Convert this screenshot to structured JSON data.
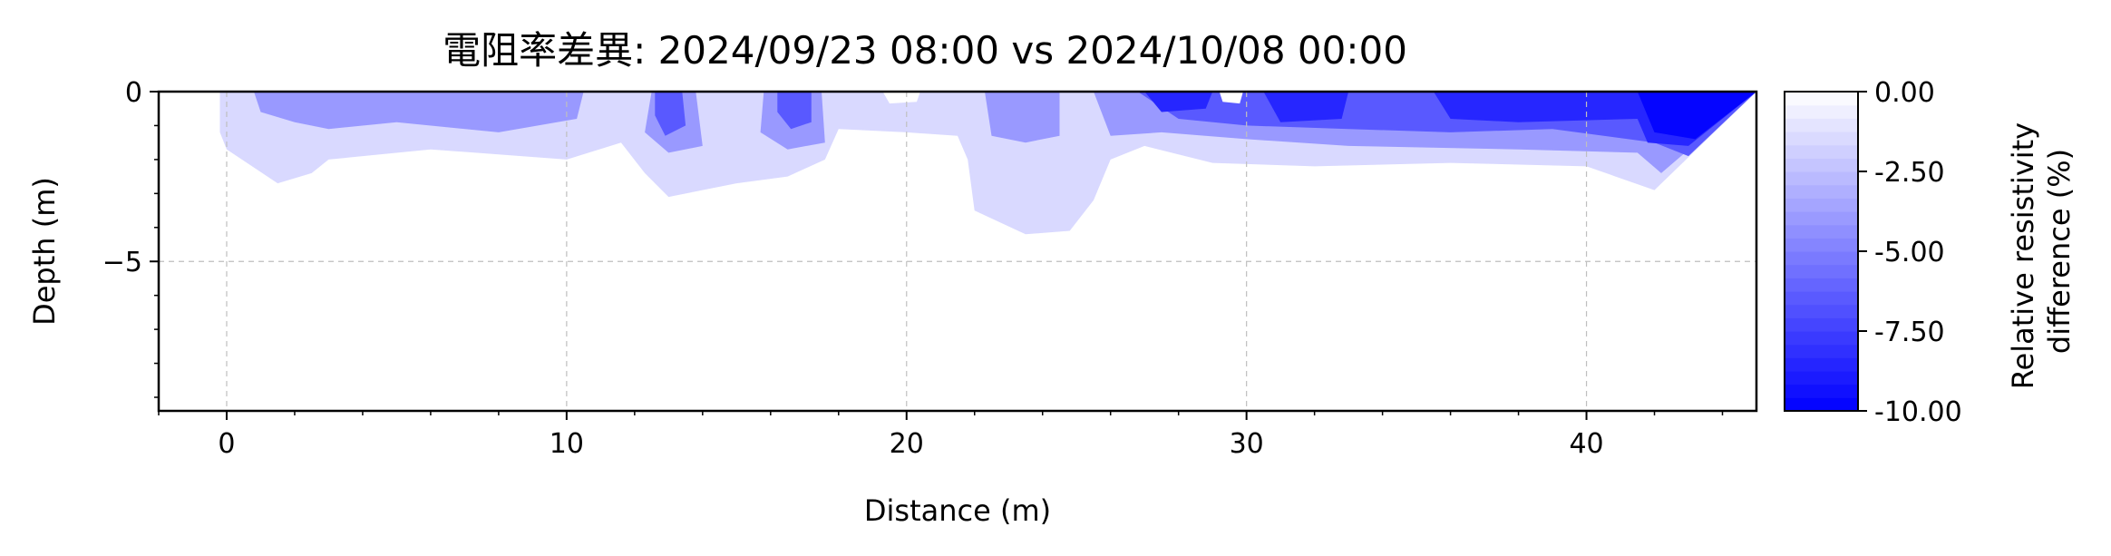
{
  "chart_data": {
    "type": "heatmap",
    "title": "電阻率差異: 2024/09/23 08:00 vs 2024/10/08 00:00",
    "xlabel": "Distance (m)",
    "ylabel": "Depth (m)",
    "xlim": [
      -2.0,
      45.0
    ],
    "ylim": [
      -9.4,
      0
    ],
    "xticks": [
      0,
      10,
      20,
      30,
      40
    ],
    "xtick_labels": [
      "0",
      "10",
      "20",
      "30",
      "40"
    ],
    "yticks": [
      0,
      -5
    ],
    "ytick_labels": [
      "0",
      "−5"
    ],
    "grid": true,
    "colorbar": {
      "label_lines": [
        "Relative resistivity",
        "difference (%)"
      ],
      "range": [
        -10.0,
        0.0
      ],
      "ticks": [
        0.0,
        -2.5,
        -5.0,
        -7.5,
        -10.0
      ],
      "tick_labels": [
        "0.00",
        "-2.50",
        "-5.00",
        "-7.50",
        "-10.00"
      ],
      "color_low": "#0000ff",
      "color_high": "#ffffff",
      "levels": 24
    },
    "regions": [
      {
        "level": -1.5,
        "points": [
          [
            0.0,
            0.0
          ],
          [
            45.0,
            0.0
          ],
          [
            42.0,
            -2.9
          ],
          [
            40.0,
            -2.2
          ],
          [
            36.0,
            -2.1
          ],
          [
            32.0,
            -2.2
          ],
          [
            29.0,
            -2.1
          ],
          [
            27.0,
            -1.6
          ],
          [
            26.0,
            -2.0
          ],
          [
            25.5,
            -3.2
          ],
          [
            24.8,
            -4.1
          ],
          [
            23.5,
            -4.2
          ],
          [
            22.0,
            -3.5
          ],
          [
            21.8,
            -2.0
          ],
          [
            21.5,
            -1.3
          ],
          [
            20.0,
            -1.2
          ],
          [
            18.0,
            -1.1
          ],
          [
            17.6,
            -2.0
          ],
          [
            16.5,
            -2.5
          ],
          [
            15.0,
            -2.7
          ],
          [
            13.0,
            -3.1
          ],
          [
            12.3,
            -2.4
          ],
          [
            11.6,
            -1.5
          ],
          [
            10.0,
            -2.0
          ],
          [
            6.0,
            -1.7
          ],
          [
            3.0,
            -2.0
          ],
          [
            2.5,
            -2.4
          ],
          [
            1.5,
            -2.7
          ],
          [
            0.0,
            -1.7
          ],
          [
            -0.2,
            -1.2
          ],
          [
            -0.2,
            0.0
          ]
        ]
      },
      {
        "level": -4.0,
        "points": [
          [
            0.8,
            0.0
          ],
          [
            10.5,
            0.0
          ],
          [
            10.3,
            -0.8
          ],
          [
            8.0,
            -1.2
          ],
          [
            5.0,
            -0.9
          ],
          [
            3.0,
            -1.1
          ],
          [
            2.0,
            -0.9
          ],
          [
            1.0,
            -0.6
          ]
        ]
      },
      {
        "level": -4.0,
        "points": [
          [
            12.5,
            0.0
          ],
          [
            13.8,
            0.0
          ],
          [
            14.0,
            -1.6
          ],
          [
            13.0,
            -1.8
          ],
          [
            12.3,
            -1.2
          ]
        ]
      },
      {
        "level": -4.0,
        "points": [
          [
            15.8,
            0.0
          ],
          [
            17.5,
            0.0
          ],
          [
            17.6,
            -1.5
          ],
          [
            16.5,
            -1.7
          ],
          [
            15.7,
            -1.2
          ]
        ]
      },
      {
        "level": -4.0,
        "points": [
          [
            22.3,
            0.0
          ],
          [
            24.5,
            0.0
          ],
          [
            24.5,
            -1.3
          ],
          [
            23.5,
            -1.5
          ],
          [
            22.5,
            -1.3
          ]
        ]
      },
      {
        "level": -4.0,
        "points": [
          [
            25.5,
            0.0
          ],
          [
            45.0,
            0.0
          ],
          [
            42.2,
            -2.4
          ],
          [
            41.5,
            -1.8
          ],
          [
            38.0,
            -1.7
          ],
          [
            33.0,
            -1.6
          ],
          [
            30.0,
            -1.4
          ],
          [
            27.5,
            -1.2
          ],
          [
            26.0,
            -1.3
          ]
        ]
      },
      {
        "level": -6.5,
        "points": [
          [
            12.6,
            0.0
          ],
          [
            13.4,
            0.0
          ],
          [
            13.5,
            -1.0
          ],
          [
            12.9,
            -1.3
          ],
          [
            12.6,
            -0.7
          ]
        ]
      },
      {
        "level": -6.5,
        "points": [
          [
            16.2,
            0.0
          ],
          [
            17.2,
            0.0
          ],
          [
            17.2,
            -0.9
          ],
          [
            16.6,
            -1.1
          ],
          [
            16.2,
            -0.6
          ]
        ]
      },
      {
        "level": -6.5,
        "points": [
          [
            26.8,
            0.0
          ],
          [
            45.0,
            0.0
          ],
          [
            43.0,
            -1.9
          ],
          [
            42.0,
            -1.5
          ],
          [
            39.0,
            -1.1
          ],
          [
            36.0,
            -1.2
          ],
          [
            33.0,
            -1.1
          ],
          [
            30.0,
            -1.0
          ],
          [
            28.0,
            -0.8
          ]
        ]
      },
      {
        "level": -8.5,
        "points": [
          [
            27.0,
            0.0
          ],
          [
            29.0,
            0.0
          ],
          [
            28.8,
            -0.5
          ],
          [
            27.5,
            -0.6
          ]
        ]
      },
      {
        "level": -8.5,
        "points": [
          [
            30.5,
            0.0
          ],
          [
            33.0,
            0.0
          ],
          [
            32.8,
            -0.8
          ],
          [
            31.0,
            -0.9
          ]
        ]
      },
      {
        "level": -8.5,
        "points": [
          [
            35.5,
            0.0
          ],
          [
            45.0,
            0.0
          ],
          [
            43.0,
            -1.6
          ],
          [
            41.8,
            -1.5
          ],
          [
            41.5,
            -0.8
          ],
          [
            38.0,
            -0.9
          ],
          [
            36.0,
            -0.8
          ]
        ]
      },
      {
        "level": -9.8,
        "points": [
          [
            41.5,
            0.0
          ],
          [
            45.0,
            0.0
          ],
          [
            43.2,
            -1.4
          ],
          [
            42.0,
            -1.2
          ]
        ]
      },
      {
        "level": 0.0,
        "points": [
          [
            29.2,
            0.0
          ],
          [
            29.9,
            0.0
          ],
          [
            29.8,
            -0.35
          ],
          [
            29.3,
            -0.3
          ]
        ]
      },
      {
        "level": 0.0,
        "points": [
          [
            19.3,
            0.0
          ],
          [
            20.4,
            0.0
          ],
          [
            20.3,
            -0.3
          ],
          [
            19.5,
            -0.35
          ]
        ]
      }
    ]
  }
}
